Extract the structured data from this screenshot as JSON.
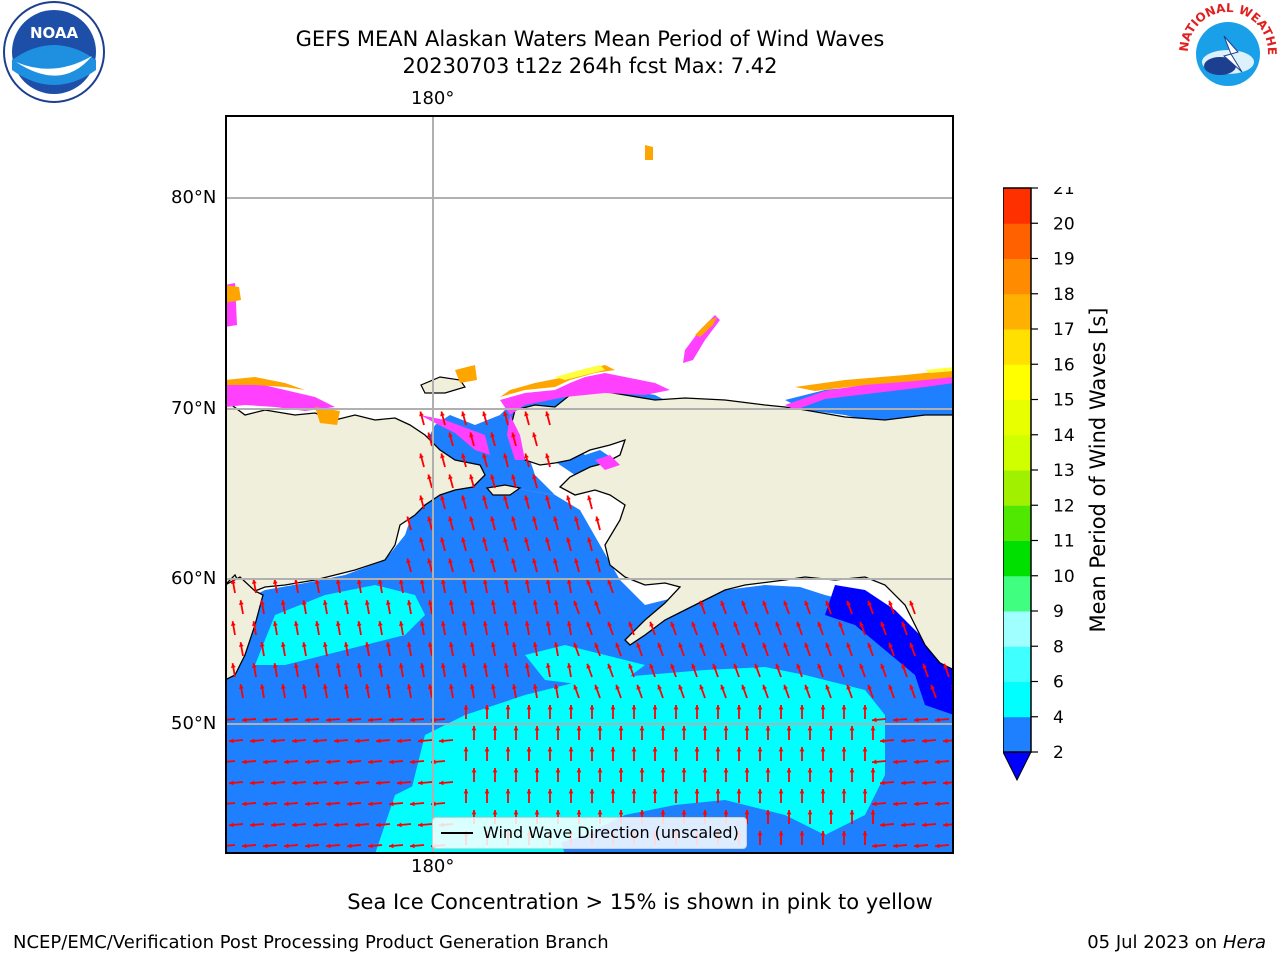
{
  "header": {
    "title_line1": "GEFS MEAN Alaskan Waters Mean Period of Wind Waves",
    "title_line2": "20230703 t12z 264h fcst   Max: 7.42"
  },
  "logos": {
    "left": {
      "text": "NOAA",
      "icon": "noaa-logo-icon"
    },
    "right": {
      "text": "NATIONAL WEATHER SERVICE",
      "icon": "nws-logo-icon"
    }
  },
  "map": {
    "top_lon_label": "180°",
    "bottom_lon_label": "180°",
    "lat_labels": [
      "80°N",
      "70°N",
      "60°N",
      "50°N"
    ],
    "legend_label": "Wind Wave Direction (unscaled)",
    "colors": {
      "land": "#f0efdc",
      "ocean_blue": "#1e7fff",
      "ocean_cyan": "#00ffff",
      "deep_blue": "#0000ff",
      "arrow": "#ff0000",
      "ice_pink": "#ff40ff",
      "ice_orange": "#ffa500",
      "ice_yellow": "#ffff40",
      "grid": "#b0b0b0"
    }
  },
  "colorbar": {
    "label": "Mean Period of Wind Waves [s]",
    "ticks": [
      "2",
      "4",
      "6",
      "8",
      "9",
      "10",
      "11",
      "12",
      "13",
      "14",
      "15",
      "16",
      "17",
      "18",
      "19",
      "20",
      "21"
    ],
    "colors": [
      "#1e7fff",
      "#00ffff",
      "#40ffff",
      "#a0ffff",
      "#40ff80",
      "#00e000",
      "#50e800",
      "#a0f000",
      "#d0ff00",
      "#e8ff00",
      "#ffff00",
      "#ffe000",
      "#ffb000",
      "#ff8c00",
      "#ff6000",
      "#ff3000",
      "#ff0000"
    ],
    "extend_color": "#0000ff"
  },
  "note": "Sea Ice Concentration > 15% is shown in pink to yellow",
  "footer": {
    "left": "NCEP/EMC/Verification Post Processing Product Generation Branch",
    "right_prefix": "05 Jul 2023 on ",
    "right_host": "Hera"
  }
}
